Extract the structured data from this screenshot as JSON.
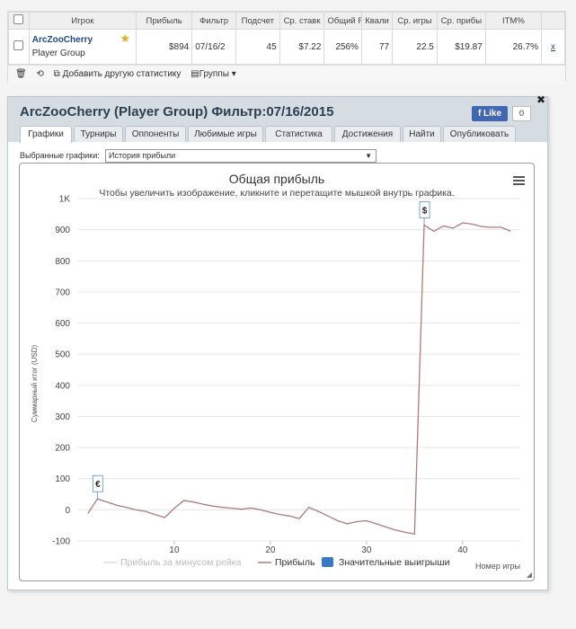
{
  "table": {
    "headers": [
      "Игрок",
      "Прибыль",
      "Фильтр",
      "Подсчет",
      "Ср. ставк",
      "Общий R",
      "Квали",
      "Ср. игры",
      "Ср. прибы",
      "ITM%"
    ],
    "row": {
      "player_name": "ArcZooCherry",
      "player_group": "Player Group",
      "profit": "$894",
      "filter": "07/16/2",
      "count": "45",
      "avg_stake": "$7.22",
      "total_roi": "256%",
      "quali": "77",
      "avg_games": "22.5",
      "avg_profit": "$19.87",
      "itm": "26.7%",
      "remove": "x"
    },
    "toolbar": {
      "add_stats": "Добавить другую статистику",
      "groups": "Группы"
    }
  },
  "panel": {
    "title": "ArcZooCherry (Player Group) Фильтр:07/16/2015",
    "fb_like": "Like",
    "fb_count": "0",
    "tabs": [
      "Графики",
      "Турниры",
      "Оппоненты",
      "Любимые игры",
      "Статистика",
      "Достижения",
      "Найти",
      "Опубликовать"
    ],
    "selected_label": "Выбранные графики:",
    "selected_value": "История прибыли"
  },
  "chart_data": {
    "type": "line",
    "title": "Общая прибыль",
    "subtitle": "Чтобы увеличить изображение, кликните и перетащите мышкой внутрь графика.",
    "ylabel": "Суммарный итог (USD)",
    "xlabel": "Номер игры",
    "ylim": [
      -100,
      1000
    ],
    "yticks": [
      "-100",
      "0",
      "100",
      "200",
      "300",
      "400",
      "500",
      "600",
      "700",
      "800",
      "900",
      "1K"
    ],
    "xticks": [
      10,
      20,
      30,
      40
    ],
    "xlim": [
      0,
      46
    ],
    "legend": [
      "Прибыль за минусом рейка",
      "Прибыль",
      "Значительные выигрыши"
    ],
    "series": [
      {
        "name": "Прибыль",
        "x": [
          1,
          2,
          3,
          4,
          5,
          6,
          7,
          8,
          9,
          10,
          11,
          12,
          13,
          14,
          15,
          16,
          17,
          18,
          19,
          20,
          21,
          22,
          23,
          24,
          25,
          26,
          27,
          28,
          29,
          30,
          31,
          32,
          33,
          34,
          35,
          36,
          37,
          38,
          39,
          40,
          41,
          42,
          43,
          44,
          45
        ],
        "y": [
          -12,
          35,
          25,
          15,
          8,
          0,
          -5,
          -15,
          -25,
          5,
          30,
          25,
          18,
          12,
          8,
          5,
          2,
          6,
          0,
          -8,
          -15,
          -20,
          -28,
          8,
          -5,
          -20,
          -35,
          -45,
          -38,
          -35,
          -45,
          -55,
          -65,
          -72,
          -78,
          915,
          895,
          912,
          905,
          922,
          918,
          910,
          908,
          908,
          895
        ]
      }
    ],
    "markers": [
      {
        "x": 2,
        "y": 35,
        "label": "€"
      },
      {
        "x": 36,
        "y": 915,
        "label": "$"
      }
    ]
  }
}
